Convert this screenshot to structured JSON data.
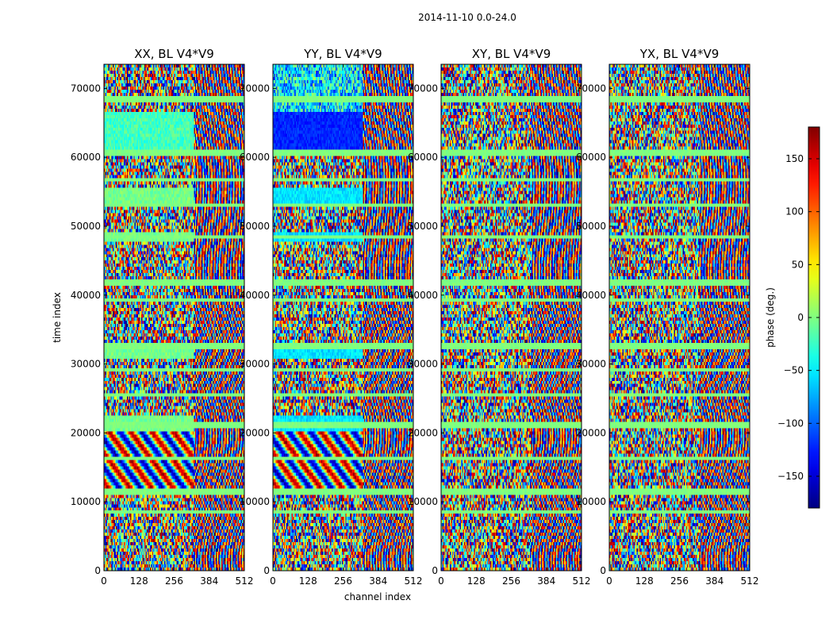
{
  "figure": {
    "suptitle": "2014-11-10 0.0-24.0"
  },
  "chart_data": {
    "type": "heatmap",
    "title": "2014-11-10 0.0-24.0",
    "xlabel": "channel index",
    "ylabel": "time index",
    "xlim": [
      0,
      512
    ],
    "ylim": [
      0,
      73500
    ],
    "x_ticks": [
      "0",
      "128",
      "256",
      "384",
      "512"
    ],
    "x_tick_values": [
      0,
      128,
      256,
      384,
      512
    ],
    "y_ticks": [
      "0",
      "10000",
      "20000",
      "30000",
      "40000",
      "50000",
      "60000",
      "70000"
    ],
    "y_tick_values": [
      0,
      10000,
      20000,
      30000,
      40000,
      50000,
      60000,
      70000
    ],
    "panels": [
      {
        "title": "XX, BL V4*V9",
        "style": "parallel"
      },
      {
        "title": "YY, BL V4*V9",
        "style": "parallel"
      },
      {
        "title": "XY, BL V4*V9",
        "style": "cross"
      },
      {
        "title": "YX, BL V4*V9",
        "style": "cross"
      }
    ],
    "colorbar": {
      "label": "phase (deg.)",
      "range": [
        -180,
        180
      ],
      "ticks": [
        "−150",
        "−100",
        "−50",
        "0",
        "50",
        "100",
        "150"
      ],
      "tick_values": [
        -150,
        -100,
        -50,
        0,
        50,
        100,
        150
      ],
      "colormap": "jet"
    },
    "grid": false
  }
}
